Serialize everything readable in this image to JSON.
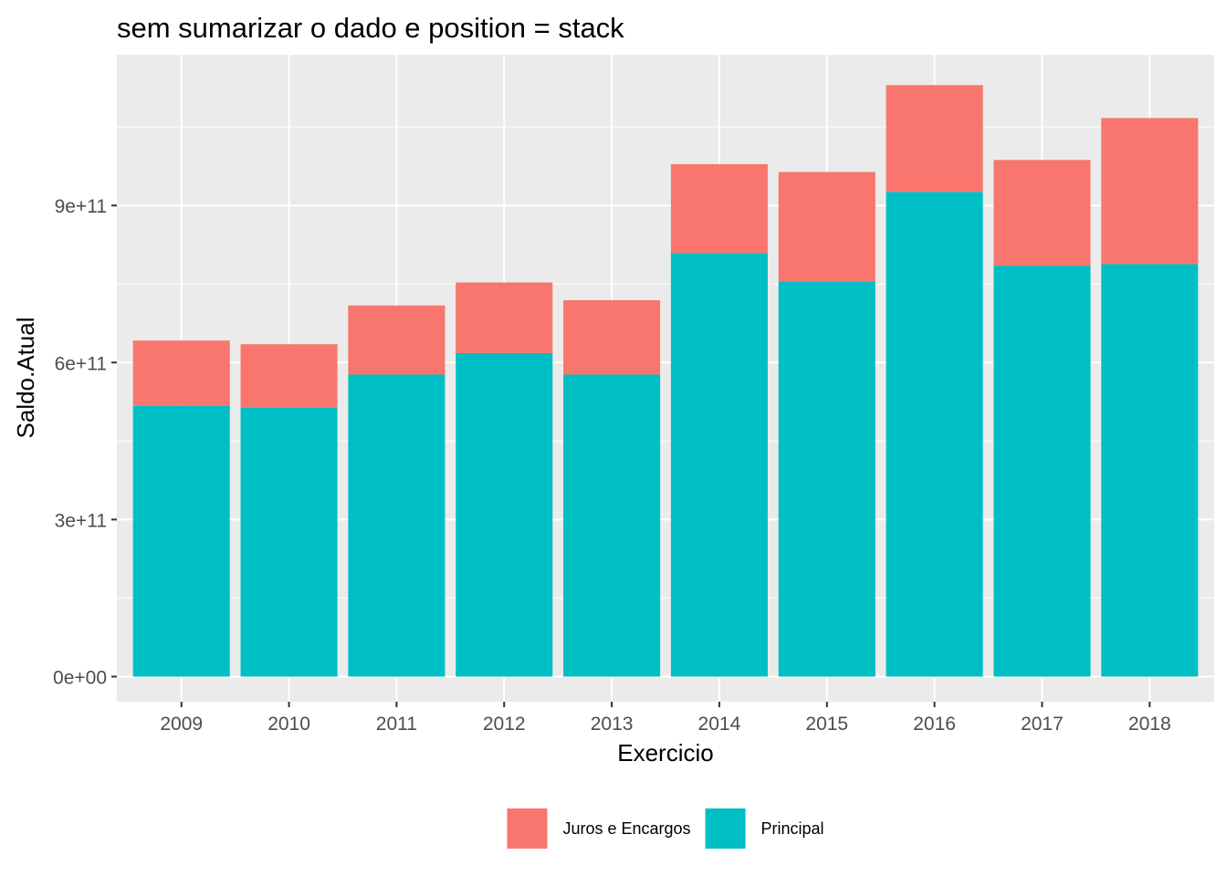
{
  "chart_data": {
    "type": "bar",
    "stacked": true,
    "title": "sem sumarizar o dado e position = stack",
    "xlabel": "Exercicio",
    "ylabel": "Saldo.Atual",
    "categories": [
      "2009",
      "2010",
      "2011",
      "2012",
      "2013",
      "2014",
      "2015",
      "2016",
      "2017",
      "2018"
    ],
    "series": [
      {
        "name": "Principal",
        "color": "#00BFC4",
        "values": [
          517000000000,
          514000000000,
          577000000000,
          618000000000,
          577000000000,
          809000000000,
          755000000000,
          926000000000,
          785000000000,
          788000000000
        ]
      },
      {
        "name": "Juros e Encargos",
        "color": "#F8766D",
        "values": [
          125000000000,
          121000000000,
          132000000000,
          135000000000,
          142000000000,
          170000000000,
          209000000000,
          204000000000,
          202000000000,
          279000000000
        ]
      }
    ],
    "legend": {
      "position": "bottom",
      "order": [
        "Juros e Encargos",
        "Principal"
      ]
    },
    "yticks": [
      {
        "value": 0,
        "label": "0e+00"
      },
      {
        "value": 300000000000,
        "label": "3e+11"
      },
      {
        "value": 600000000000,
        "label": "6e+11"
      },
      {
        "value": 900000000000,
        "label": "9e+11"
      }
    ],
    "ylim": [
      -48000000000,
      1188000000000
    ],
    "grid": true,
    "panel_background": "#EBEBEB",
    "grid_color": "#FFFFFF"
  }
}
